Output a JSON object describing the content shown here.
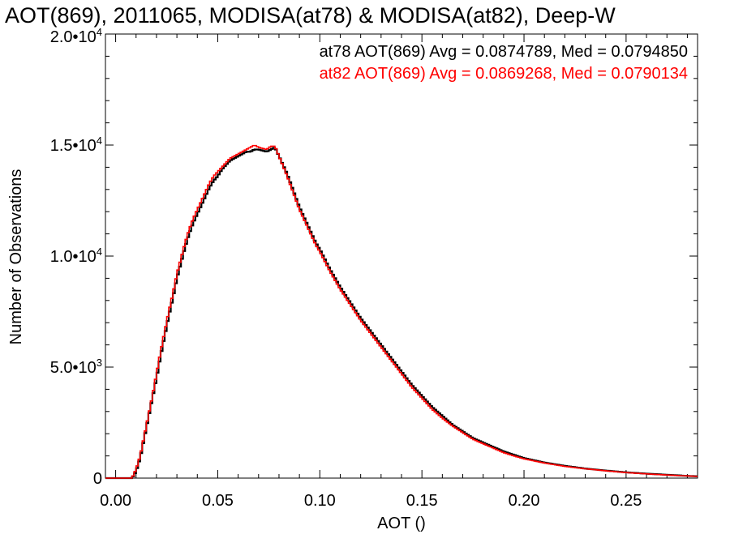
{
  "chart_data": {
    "type": "line",
    "title": "AOT(869), 2011065, MODISA(at78) & MODISA(at82), Deep-W",
    "xlabel": "AOT ()",
    "ylabel": "Number of Observations",
    "xlim": [
      -0.005,
      0.285
    ],
    "ylim": [
      0,
      20000
    ],
    "x_ticks": [
      {
        "value": 0.0,
        "label": "0.00"
      },
      {
        "value": 0.05,
        "label": "0.05"
      },
      {
        "value": 0.1,
        "label": "0.10"
      },
      {
        "value": 0.15,
        "label": "0.15"
      },
      {
        "value": 0.2,
        "label": "0.20"
      },
      {
        "value": 0.25,
        "label": "0.25"
      }
    ],
    "y_ticks": [
      {
        "value": 0,
        "mantissa": "0",
        "exponent": ""
      },
      {
        "value": 5000,
        "mantissa": "5.0•10",
        "exponent": "3"
      },
      {
        "value": 10000,
        "mantissa": "1.0•10",
        "exponent": "4"
      },
      {
        "value": 15000,
        "mantissa": "1.5•10",
        "exponent": "4"
      },
      {
        "value": 20000,
        "mantissa": "2.0•10",
        "exponent": "4"
      }
    ],
    "grid": false,
    "legend_position": "top-right",
    "step_histogram": true,
    "series": [
      {
        "name": "at78",
        "legend": "at78 AOT(869) Avg = 0.0874789, Med = 0.0794850",
        "color": "#000000",
        "points": [
          [
            -0.005,
            0
          ],
          [
            0.008,
            0
          ],
          [
            0.01,
            300
          ],
          [
            0.012,
            900
          ],
          [
            0.014,
            1800
          ],
          [
            0.016,
            2700
          ],
          [
            0.018,
            3600
          ],
          [
            0.02,
            4500
          ],
          [
            0.022,
            5500
          ],
          [
            0.024,
            6400
          ],
          [
            0.026,
            7300
          ],
          [
            0.028,
            8100
          ],
          [
            0.03,
            9000
          ],
          [
            0.032,
            9700
          ],
          [
            0.034,
            10400
          ],
          [
            0.036,
            11000
          ],
          [
            0.038,
            11500
          ],
          [
            0.04,
            11900
          ],
          [
            0.042,
            12300
          ],
          [
            0.044,
            12700
          ],
          [
            0.046,
            13100
          ],
          [
            0.048,
            13400
          ],
          [
            0.05,
            13600
          ],
          [
            0.052,
            13900
          ],
          [
            0.054,
            14100
          ],
          [
            0.056,
            14300
          ],
          [
            0.058,
            14400
          ],
          [
            0.06,
            14500
          ],
          [
            0.062,
            14600
          ],
          [
            0.064,
            14700
          ],
          [
            0.066,
            14700
          ],
          [
            0.068,
            14800
          ],
          [
            0.07,
            14800
          ],
          [
            0.072,
            14750
          ],
          [
            0.074,
            14700
          ],
          [
            0.076,
            14800
          ],
          [
            0.078,
            14900
          ],
          [
            0.08,
            14500
          ],
          [
            0.082,
            14100
          ],
          [
            0.084,
            13700
          ],
          [
            0.086,
            13200
          ],
          [
            0.088,
            12700
          ],
          [
            0.09,
            12200
          ],
          [
            0.092,
            11800
          ],
          [
            0.094,
            11400
          ],
          [
            0.096,
            11000
          ],
          [
            0.098,
            10600
          ],
          [
            0.1,
            10300
          ],
          [
            0.105,
            9400
          ],
          [
            0.11,
            8600
          ],
          [
            0.115,
            7900
          ],
          [
            0.12,
            7200
          ],
          [
            0.125,
            6600
          ],
          [
            0.13,
            6000
          ],
          [
            0.135,
            5400
          ],
          [
            0.14,
            4800
          ],
          [
            0.145,
            4200
          ],
          [
            0.15,
            3700
          ],
          [
            0.155,
            3200
          ],
          [
            0.16,
            2800
          ],
          [
            0.165,
            2400
          ],
          [
            0.17,
            2100
          ],
          [
            0.175,
            1800
          ],
          [
            0.18,
            1600
          ],
          [
            0.185,
            1400
          ],
          [
            0.19,
            1200
          ],
          [
            0.195,
            1050
          ],
          [
            0.2,
            900
          ],
          [
            0.21,
            700
          ],
          [
            0.22,
            550
          ],
          [
            0.23,
            430
          ],
          [
            0.24,
            340
          ],
          [
            0.25,
            260
          ],
          [
            0.26,
            200
          ],
          [
            0.27,
            150
          ],
          [
            0.28,
            100
          ],
          [
            0.285,
            80
          ]
        ]
      },
      {
        "name": "at82",
        "legend": "at82 AOT(869) Avg = 0.0869268, Med = 0.0790134",
        "color": "#ff0000",
        "points": [
          [
            -0.005,
            0
          ],
          [
            0.008,
            0
          ],
          [
            0.01,
            400
          ],
          [
            0.012,
            1000
          ],
          [
            0.014,
            1900
          ],
          [
            0.016,
            2800
          ],
          [
            0.018,
            3700
          ],
          [
            0.02,
            4700
          ],
          [
            0.022,
            5700
          ],
          [
            0.024,
            6600
          ],
          [
            0.026,
            7500
          ],
          [
            0.028,
            8300
          ],
          [
            0.03,
            9200
          ],
          [
            0.032,
            9900
          ],
          [
            0.034,
            10600
          ],
          [
            0.036,
            11200
          ],
          [
            0.038,
            11700
          ],
          [
            0.04,
            12100
          ],
          [
            0.042,
            12500
          ],
          [
            0.044,
            12900
          ],
          [
            0.046,
            13300
          ],
          [
            0.048,
            13600
          ],
          [
            0.05,
            13800
          ],
          [
            0.052,
            14000
          ],
          [
            0.054,
            14200
          ],
          [
            0.056,
            14400
          ],
          [
            0.058,
            14500
          ],
          [
            0.06,
            14600
          ],
          [
            0.062,
            14700
          ],
          [
            0.064,
            14800
          ],
          [
            0.066,
            14900
          ],
          [
            0.068,
            15000
          ],
          [
            0.07,
            14900
          ],
          [
            0.072,
            14850
          ],
          [
            0.074,
            14800
          ],
          [
            0.076,
            14950
          ],
          [
            0.078,
            14950
          ],
          [
            0.08,
            14500
          ],
          [
            0.082,
            14050
          ],
          [
            0.084,
            13600
          ],
          [
            0.086,
            13100
          ],
          [
            0.088,
            12600
          ],
          [
            0.09,
            12100
          ],
          [
            0.092,
            11700
          ],
          [
            0.094,
            11300
          ],
          [
            0.096,
            10900
          ],
          [
            0.098,
            10500
          ],
          [
            0.1,
            10200
          ],
          [
            0.105,
            9300
          ],
          [
            0.11,
            8500
          ],
          [
            0.115,
            7800
          ],
          [
            0.12,
            7100
          ],
          [
            0.125,
            6500
          ],
          [
            0.13,
            5900
          ],
          [
            0.135,
            5300
          ],
          [
            0.14,
            4700
          ],
          [
            0.145,
            4100
          ],
          [
            0.15,
            3600
          ],
          [
            0.155,
            3100
          ],
          [
            0.16,
            2700
          ],
          [
            0.165,
            2350
          ],
          [
            0.17,
            2050
          ],
          [
            0.175,
            1750
          ],
          [
            0.18,
            1550
          ],
          [
            0.185,
            1350
          ],
          [
            0.19,
            1150
          ],
          [
            0.195,
            1000
          ],
          [
            0.2,
            870
          ],
          [
            0.21,
            680
          ],
          [
            0.22,
            530
          ],
          [
            0.23,
            420
          ],
          [
            0.24,
            330
          ],
          [
            0.25,
            250
          ],
          [
            0.26,
            190
          ],
          [
            0.27,
            140
          ],
          [
            0.28,
            100
          ],
          [
            0.285,
            80
          ]
        ]
      }
    ]
  }
}
